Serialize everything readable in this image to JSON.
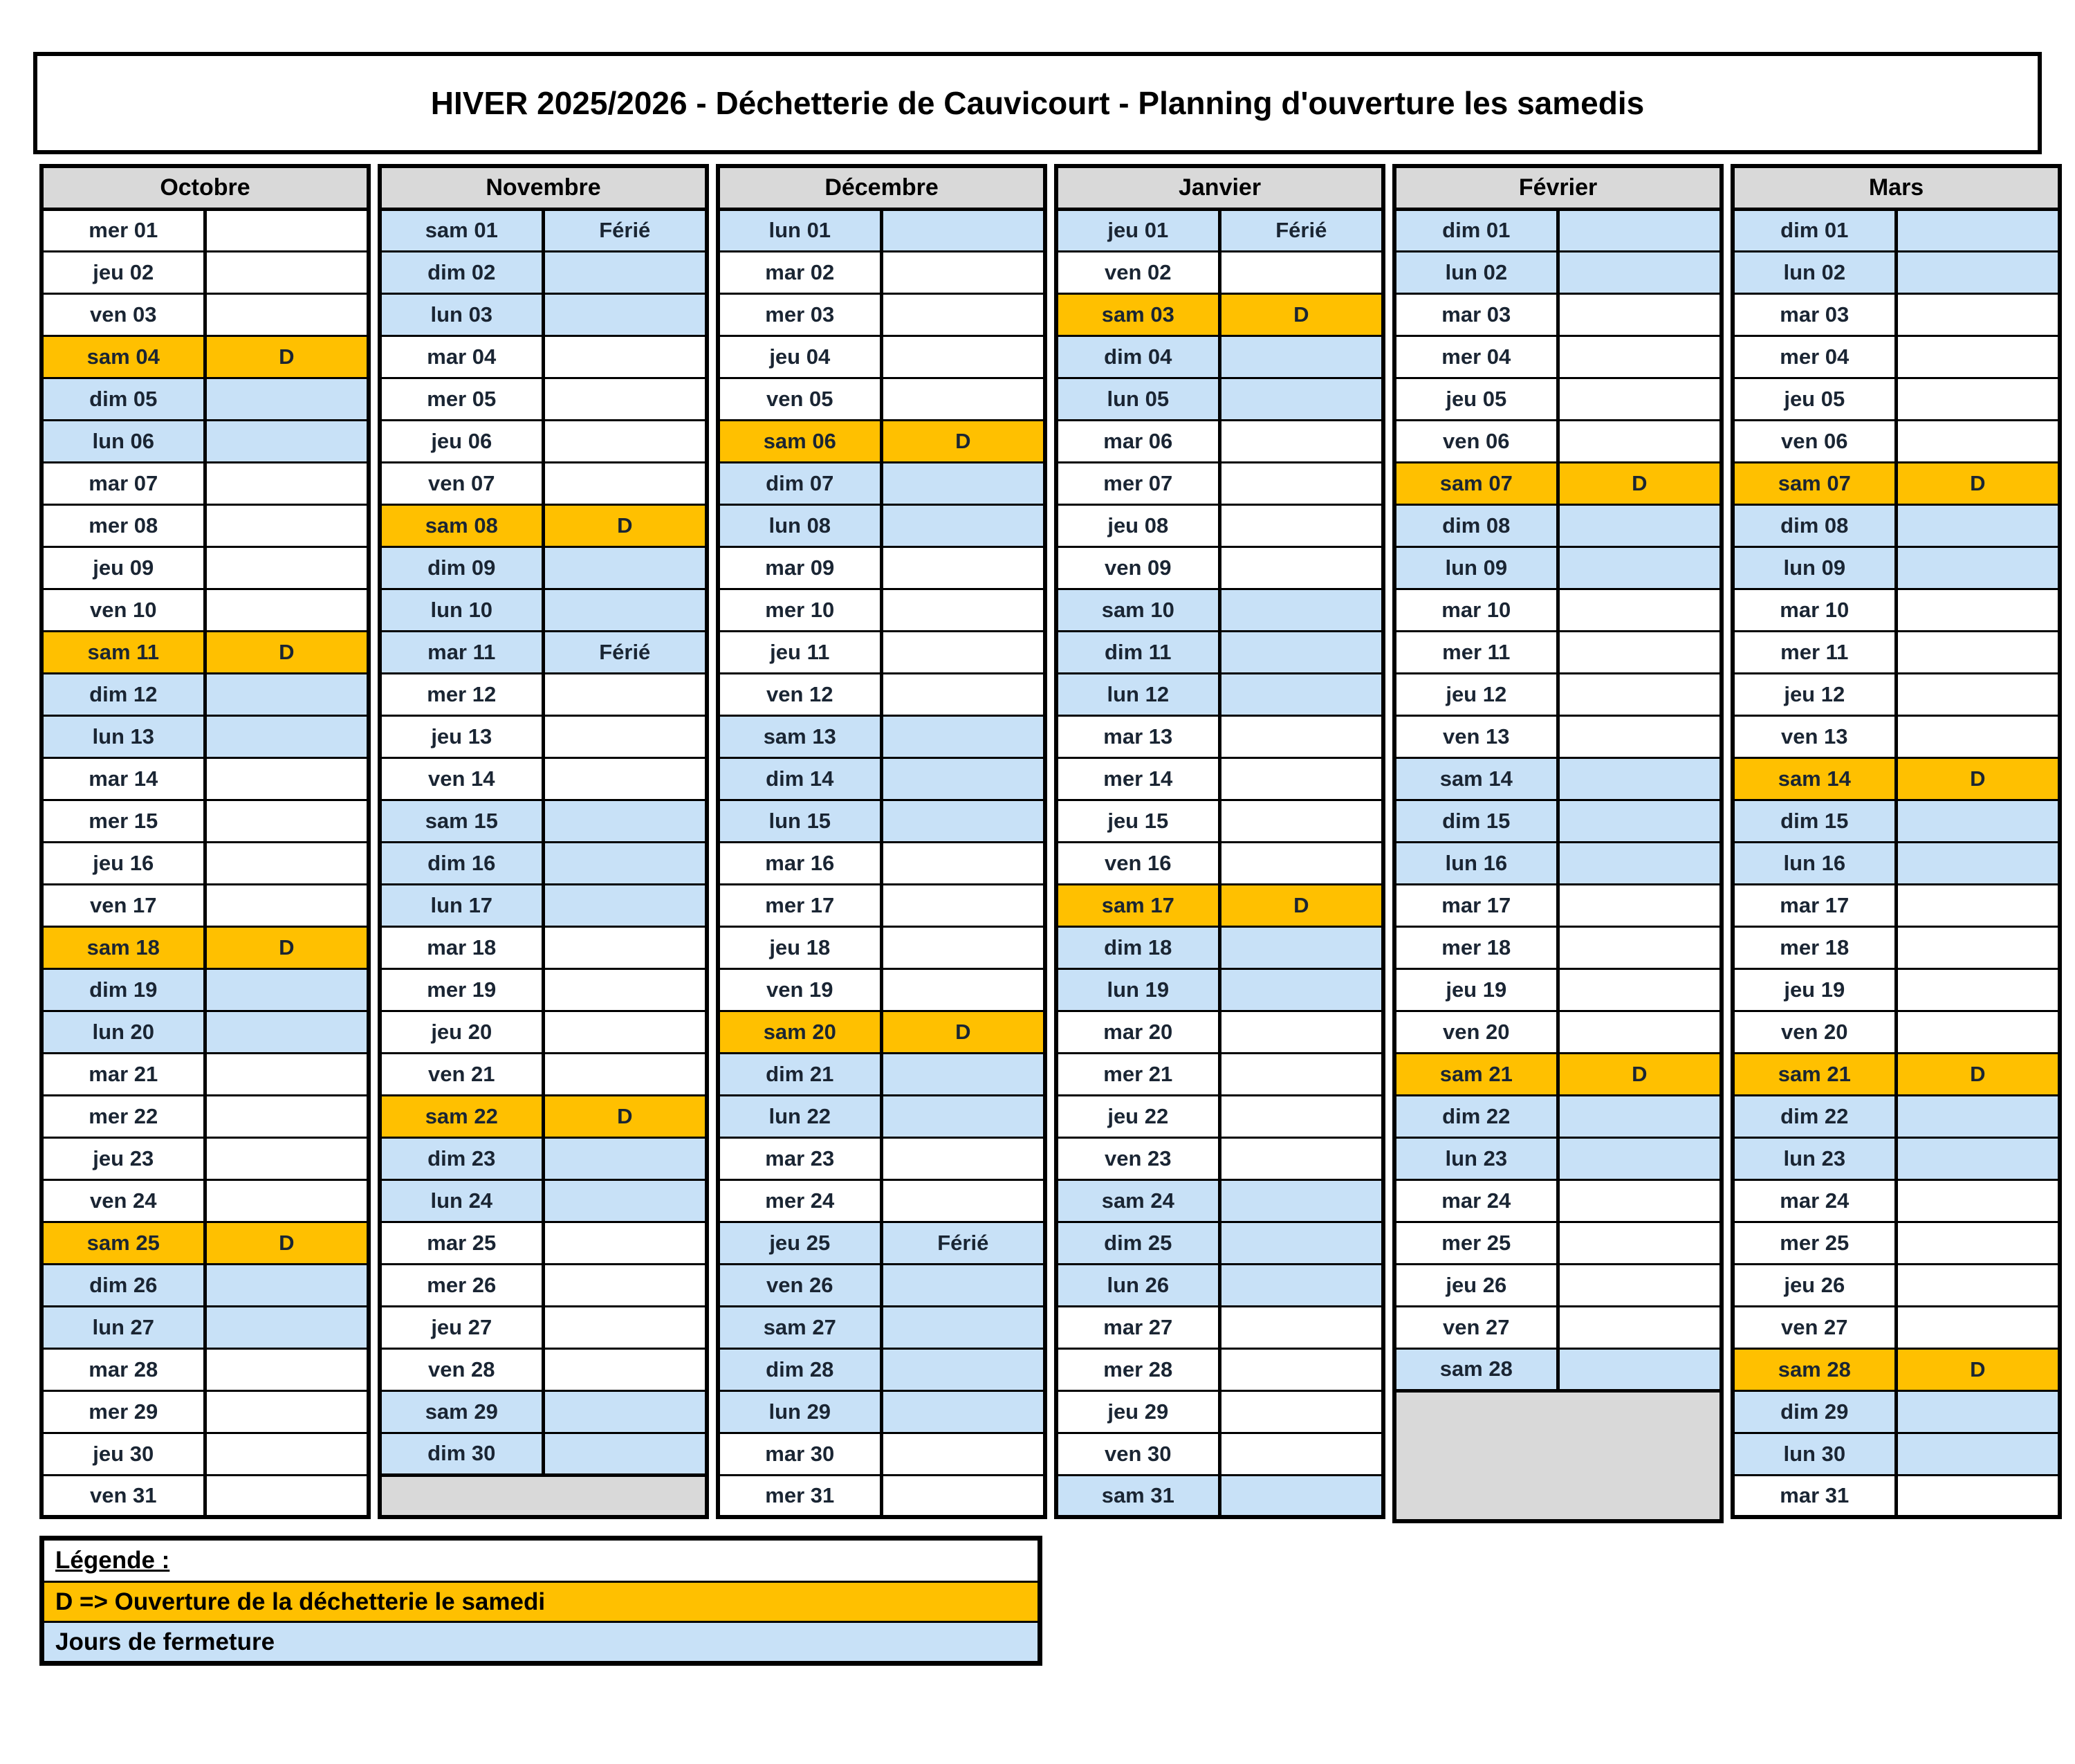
{
  "title": "HIVER 2025/2026 - Déchetterie de Cauvicourt - Planning d'ouverture les samedis",
  "colors": {
    "open_saturday": "#FFC000",
    "closed_day": "#C8E1F7",
    "month_header": "#D9D9D9",
    "empty_cell": "#D9D9D9",
    "border": "#000000"
  },
  "legend": {
    "heading": "Légende :",
    "open": "D => Ouverture de la déchetterie le samedi",
    "closed": "Jours de fermeture"
  },
  "months": [
    {
      "name": "Octobre",
      "empty_rows": 0,
      "days": [
        {
          "label": "mer 01",
          "bg": "white",
          "status": ""
        },
        {
          "label": "jeu 02",
          "bg": "white",
          "status": ""
        },
        {
          "label": "ven 03",
          "bg": "white",
          "status": ""
        },
        {
          "label": "sam 04",
          "bg": "orange",
          "status": "D"
        },
        {
          "label": "dim 05",
          "bg": "blue",
          "status": ""
        },
        {
          "label": "lun 06",
          "bg": "blue",
          "status": ""
        },
        {
          "label": "mar 07",
          "bg": "white",
          "status": ""
        },
        {
          "label": "mer 08",
          "bg": "white",
          "status": ""
        },
        {
          "label": "jeu 09",
          "bg": "white",
          "status": ""
        },
        {
          "label": "ven 10",
          "bg": "white",
          "status": ""
        },
        {
          "label": "sam 11",
          "bg": "orange",
          "status": "D"
        },
        {
          "label": "dim 12",
          "bg": "blue",
          "status": ""
        },
        {
          "label": "lun 13",
          "bg": "blue",
          "status": ""
        },
        {
          "label": "mar 14",
          "bg": "white",
          "status": ""
        },
        {
          "label": "mer 15",
          "bg": "white",
          "status": ""
        },
        {
          "label": "jeu 16",
          "bg": "white",
          "status": ""
        },
        {
          "label": "ven 17",
          "bg": "white",
          "status": ""
        },
        {
          "label": "sam 18",
          "bg": "orange",
          "status": "D"
        },
        {
          "label": "dim 19",
          "bg": "blue",
          "status": ""
        },
        {
          "label": "lun 20",
          "bg": "blue",
          "status": ""
        },
        {
          "label": "mar 21",
          "bg": "white",
          "status": ""
        },
        {
          "label": "mer 22",
          "bg": "white",
          "status": ""
        },
        {
          "label": "jeu 23",
          "bg": "white",
          "status": ""
        },
        {
          "label": "ven 24",
          "bg": "white",
          "status": ""
        },
        {
          "label": "sam 25",
          "bg": "orange",
          "status": "D"
        },
        {
          "label": "dim 26",
          "bg": "blue",
          "status": ""
        },
        {
          "label": "lun 27",
          "bg": "blue",
          "status": ""
        },
        {
          "label": "mar 28",
          "bg": "white",
          "status": ""
        },
        {
          "label": "mer 29",
          "bg": "white",
          "status": ""
        },
        {
          "label": "jeu 30",
          "bg": "white",
          "status": ""
        },
        {
          "label": "ven 31",
          "bg": "white",
          "status": ""
        }
      ]
    },
    {
      "name": "Novembre",
      "empty_rows": 1,
      "days": [
        {
          "label": "sam 01",
          "bg": "blue",
          "status": "Férié"
        },
        {
          "label": "dim 02",
          "bg": "blue",
          "status": ""
        },
        {
          "label": "lun 03",
          "bg": "blue",
          "status": ""
        },
        {
          "label": "mar 04",
          "bg": "white",
          "status": ""
        },
        {
          "label": "mer 05",
          "bg": "white",
          "status": ""
        },
        {
          "label": "jeu 06",
          "bg": "white",
          "status": ""
        },
        {
          "label": "ven 07",
          "bg": "white",
          "status": ""
        },
        {
          "label": "sam 08",
          "bg": "orange",
          "status": "D"
        },
        {
          "label": "dim 09",
          "bg": "blue",
          "status": ""
        },
        {
          "label": "lun 10",
          "bg": "blue",
          "status": ""
        },
        {
          "label": "mar 11",
          "bg": "blue",
          "status": "Férié"
        },
        {
          "label": "mer 12",
          "bg": "white",
          "status": ""
        },
        {
          "label": "jeu 13",
          "bg": "white",
          "status": ""
        },
        {
          "label": "ven 14",
          "bg": "white",
          "status": ""
        },
        {
          "label": "sam 15",
          "bg": "blue",
          "status": ""
        },
        {
          "label": "dim 16",
          "bg": "blue",
          "status": ""
        },
        {
          "label": "lun 17",
          "bg": "blue",
          "status": ""
        },
        {
          "label": "mar 18",
          "bg": "white",
          "status": ""
        },
        {
          "label": "mer 19",
          "bg": "white",
          "status": ""
        },
        {
          "label": "jeu 20",
          "bg": "white",
          "status": ""
        },
        {
          "label": "ven 21",
          "bg": "white",
          "status": ""
        },
        {
          "label": "sam 22",
          "bg": "orange",
          "status": "D"
        },
        {
          "label": "dim 23",
          "bg": "blue",
          "status": ""
        },
        {
          "label": "lun 24",
          "bg": "blue",
          "status": ""
        },
        {
          "label": "mar 25",
          "bg": "white",
          "status": ""
        },
        {
          "label": "mer 26",
          "bg": "white",
          "status": ""
        },
        {
          "label": "jeu 27",
          "bg": "white",
          "status": ""
        },
        {
          "label": "ven 28",
          "bg": "white",
          "status": ""
        },
        {
          "label": "sam 29",
          "bg": "blue",
          "status": ""
        },
        {
          "label": "dim 30",
          "bg": "blue",
          "status": ""
        }
      ]
    },
    {
      "name": "Décembre",
      "empty_rows": 0,
      "days": [
        {
          "label": "lun 01",
          "bg": "blue",
          "status": ""
        },
        {
          "label": "mar 02",
          "bg": "white",
          "status": ""
        },
        {
          "label": "mer 03",
          "bg": "white",
          "status": ""
        },
        {
          "label": "jeu 04",
          "bg": "white",
          "status": ""
        },
        {
          "label": "ven 05",
          "bg": "white",
          "status": ""
        },
        {
          "label": "sam 06",
          "bg": "orange",
          "status": "D"
        },
        {
          "label": "dim 07",
          "bg": "blue",
          "status": ""
        },
        {
          "label": "lun 08",
          "bg": "blue",
          "status": ""
        },
        {
          "label": "mar 09",
          "bg": "white",
          "status": ""
        },
        {
          "label": "mer 10",
          "bg": "white",
          "status": ""
        },
        {
          "label": "jeu 11",
          "bg": "white",
          "status": ""
        },
        {
          "label": "ven 12",
          "bg": "white",
          "status": ""
        },
        {
          "label": "sam 13",
          "bg": "blue",
          "status": ""
        },
        {
          "label": "dim 14",
          "bg": "blue",
          "status": ""
        },
        {
          "label": "lun 15",
          "bg": "blue",
          "status": ""
        },
        {
          "label": "mar 16",
          "bg": "white",
          "status": ""
        },
        {
          "label": "mer 17",
          "bg": "white",
          "status": ""
        },
        {
          "label": "jeu 18",
          "bg": "white",
          "status": ""
        },
        {
          "label": "ven 19",
          "bg": "white",
          "status": ""
        },
        {
          "label": "sam 20",
          "bg": "orange",
          "status": "D"
        },
        {
          "label": "dim 21",
          "bg": "blue",
          "status": ""
        },
        {
          "label": "lun 22",
          "bg": "blue",
          "status": ""
        },
        {
          "label": "mar 23",
          "bg": "white",
          "status": ""
        },
        {
          "label": "mer 24",
          "bg": "white",
          "status": ""
        },
        {
          "label": "jeu 25",
          "bg": "blue",
          "status": "Férié"
        },
        {
          "label": "ven 26",
          "bg": "blue",
          "status": ""
        },
        {
          "label": "sam 27",
          "bg": "blue",
          "status": ""
        },
        {
          "label": "dim 28",
          "bg": "blue",
          "status": ""
        },
        {
          "label": "lun 29",
          "bg": "blue",
          "status": ""
        },
        {
          "label": "mar 30",
          "bg": "white",
          "status": ""
        },
        {
          "label": "mer 31",
          "bg": "white",
          "status": ""
        }
      ]
    },
    {
      "name": "Janvier",
      "empty_rows": 0,
      "days": [
        {
          "label": "jeu 01",
          "bg": "blue",
          "status": "Férié"
        },
        {
          "label": "ven 02",
          "bg": "white",
          "status": ""
        },
        {
          "label": "sam 03",
          "bg": "orange",
          "status": "D"
        },
        {
          "label": "dim 04",
          "bg": "blue",
          "status": ""
        },
        {
          "label": "lun 05",
          "bg": "blue",
          "status": ""
        },
        {
          "label": "mar 06",
          "bg": "white",
          "status": ""
        },
        {
          "label": "mer 07",
          "bg": "white",
          "status": ""
        },
        {
          "label": "jeu 08",
          "bg": "white",
          "status": ""
        },
        {
          "label": "ven 09",
          "bg": "white",
          "status": ""
        },
        {
          "label": "sam 10",
          "bg": "blue",
          "status": ""
        },
        {
          "label": "dim 11",
          "bg": "blue",
          "status": ""
        },
        {
          "label": "lun 12",
          "bg": "blue",
          "status": ""
        },
        {
          "label": "mar 13",
          "bg": "white",
          "status": ""
        },
        {
          "label": "mer 14",
          "bg": "white",
          "status": ""
        },
        {
          "label": "jeu 15",
          "bg": "white",
          "status": ""
        },
        {
          "label": "ven 16",
          "bg": "white",
          "status": ""
        },
        {
          "label": "sam 17",
          "bg": "orange",
          "status": "D"
        },
        {
          "label": "dim 18",
          "bg": "blue",
          "status": ""
        },
        {
          "label": "lun 19",
          "bg": "blue",
          "status": ""
        },
        {
          "label": "mar 20",
          "bg": "white",
          "status": ""
        },
        {
          "label": "mer 21",
          "bg": "white",
          "status": ""
        },
        {
          "label": "jeu 22",
          "bg": "white",
          "status": ""
        },
        {
          "label": "ven 23",
          "bg": "white",
          "status": ""
        },
        {
          "label": "sam 24",
          "bg": "blue",
          "status": ""
        },
        {
          "label": "dim 25",
          "bg": "blue",
          "status": ""
        },
        {
          "label": "lun 26",
          "bg": "blue",
          "status": ""
        },
        {
          "label": "mar 27",
          "bg": "white",
          "status": ""
        },
        {
          "label": "mer 28",
          "bg": "white",
          "status": ""
        },
        {
          "label": "jeu 29",
          "bg": "white",
          "status": ""
        },
        {
          "label": "ven 30",
          "bg": "white",
          "status": ""
        },
        {
          "label": "sam 31",
          "bg": "blue",
          "status": ""
        }
      ]
    },
    {
      "name": "Février",
      "empty_rows": 3,
      "days": [
        {
          "label": "dim 01",
          "bg": "blue",
          "status": ""
        },
        {
          "label": "lun 02",
          "bg": "blue",
          "status": ""
        },
        {
          "label": "mar 03",
          "bg": "white",
          "status": ""
        },
        {
          "label": "mer 04",
          "bg": "white",
          "status": ""
        },
        {
          "label": "jeu 05",
          "bg": "white",
          "status": ""
        },
        {
          "label": "ven 06",
          "bg": "white",
          "status": ""
        },
        {
          "label": "sam 07",
          "bg": "orange",
          "status": "D"
        },
        {
          "label": "dim 08",
          "bg": "blue",
          "status": ""
        },
        {
          "label": "lun 09",
          "bg": "blue",
          "status": ""
        },
        {
          "label": "mar 10",
          "bg": "white",
          "status": ""
        },
        {
          "label": "mer 11",
          "bg": "white",
          "status": ""
        },
        {
          "label": "jeu 12",
          "bg": "white",
          "status": ""
        },
        {
          "label": "ven 13",
          "bg": "white",
          "status": ""
        },
        {
          "label": "sam 14",
          "bg": "blue",
          "status": ""
        },
        {
          "label": "dim 15",
          "bg": "blue",
          "status": ""
        },
        {
          "label": "lun 16",
          "bg": "blue",
          "status": ""
        },
        {
          "label": "mar 17",
          "bg": "white",
          "status": ""
        },
        {
          "label": "mer 18",
          "bg": "white",
          "status": ""
        },
        {
          "label": "jeu 19",
          "bg": "white",
          "status": ""
        },
        {
          "label": "ven 20",
          "bg": "white",
          "status": ""
        },
        {
          "label": "sam 21",
          "bg": "orange",
          "status": "D"
        },
        {
          "label": "dim 22",
          "bg": "blue",
          "status": ""
        },
        {
          "label": "lun 23",
          "bg": "blue",
          "status": ""
        },
        {
          "label": "mar 24",
          "bg": "white",
          "status": ""
        },
        {
          "label": "mer 25",
          "bg": "white",
          "status": ""
        },
        {
          "label": "jeu 26",
          "bg": "white",
          "status": ""
        },
        {
          "label": "ven 27",
          "bg": "white",
          "status": ""
        },
        {
          "label": "sam 28",
          "bg": "blue",
          "status": ""
        }
      ]
    },
    {
      "name": "Mars",
      "empty_rows": 0,
      "days": [
        {
          "label": "dim 01",
          "bg": "blue",
          "status": ""
        },
        {
          "label": "lun 02",
          "bg": "blue",
          "status": ""
        },
        {
          "label": "mar 03",
          "bg": "white",
          "status": ""
        },
        {
          "label": "mer 04",
          "bg": "white",
          "status": ""
        },
        {
          "label": "jeu 05",
          "bg": "white",
          "status": ""
        },
        {
          "label": "ven 06",
          "bg": "white",
          "status": ""
        },
        {
          "label": "sam 07",
          "bg": "orange",
          "status": "D"
        },
        {
          "label": "dim 08",
          "bg": "blue",
          "status": ""
        },
        {
          "label": "lun 09",
          "bg": "blue",
          "status": ""
        },
        {
          "label": "mar 10",
          "bg": "white",
          "status": ""
        },
        {
          "label": "mer 11",
          "bg": "white",
          "status": ""
        },
        {
          "label": "jeu 12",
          "bg": "white",
          "status": ""
        },
        {
          "label": "ven 13",
          "bg": "white",
          "status": ""
        },
        {
          "label": "sam 14",
          "bg": "orange",
          "status": "D"
        },
        {
          "label": "dim 15",
          "bg": "blue",
          "status": ""
        },
        {
          "label": "lun 16",
          "bg": "blue",
          "status": ""
        },
        {
          "label": "mar 17",
          "bg": "white",
          "status": ""
        },
        {
          "label": "mer 18",
          "bg": "white",
          "status": ""
        },
        {
          "label": "jeu 19",
          "bg": "white",
          "status": ""
        },
        {
          "label": "ven 20",
          "bg": "white",
          "status": ""
        },
        {
          "label": "sam 21",
          "bg": "orange",
          "status": "D"
        },
        {
          "label": "dim 22",
          "bg": "blue",
          "status": ""
        },
        {
          "label": "lun 23",
          "bg": "blue",
          "status": ""
        },
        {
          "label": "mar 24",
          "bg": "white",
          "status": ""
        },
        {
          "label": "mer 25",
          "bg": "white",
          "status": ""
        },
        {
          "label": "jeu 26",
          "bg": "white",
          "status": ""
        },
        {
          "label": "ven 27",
          "bg": "white",
          "status": ""
        },
        {
          "label": "sam 28",
          "bg": "orange",
          "status": "D"
        },
        {
          "label": "dim 29",
          "bg": "blue",
          "status": ""
        },
        {
          "label": "lun 30",
          "bg": "blue",
          "status": ""
        },
        {
          "label": "mar 31",
          "bg": "white",
          "status": ""
        }
      ]
    }
  ]
}
